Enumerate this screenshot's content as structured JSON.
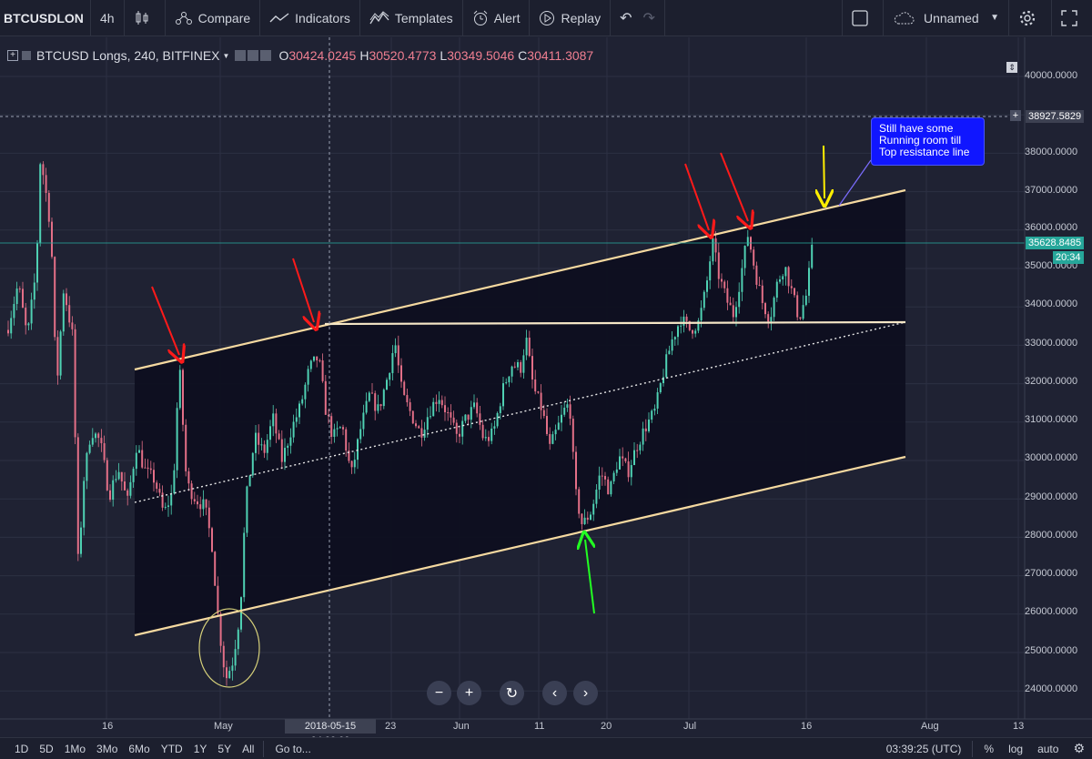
{
  "toolbar": {
    "symbol": "BTCUSDLON",
    "interval": "4h",
    "compare": "Compare",
    "indicators": "Indicators",
    "templates": "Templates",
    "alert": "Alert",
    "replay": "Replay",
    "layout_name": "Unnamed"
  },
  "legend": {
    "title": "BTCUSD Longs, 240, BITFINEX",
    "open": "30424.0245",
    "high": "30520.4773",
    "low": "30349.5046",
    "close": "30411.3087",
    "o": "O",
    "h": "H",
    "l": "L",
    "c": "C"
  },
  "note": {
    "line1": "Still have some",
    "line2": "Running room till",
    "line3": "Top resistance line"
  },
  "price_axis": {
    "labels": [
      "40000.0000",
      "38000.0000",
      "37000.0000",
      "36000.0000",
      "35000.0000",
      "34000.0000",
      "33000.0000",
      "32000.0000",
      "31000.0000",
      "30000.0000",
      "29000.0000",
      "28000.0000",
      "27000.0000",
      "26000.0000",
      "25000.0000",
      "24000.0000"
    ],
    "crosshair_price": "38927.5829",
    "last_price": "35628.8485",
    "countdown": "20:34"
  },
  "time_axis": {
    "labels": [
      "16",
      "May",
      "23",
      "Jun",
      "11",
      "20",
      "Jul",
      "16",
      "Aug",
      "13"
    ],
    "crosshair_time": "2018-05-15 04:00:00"
  },
  "bottom": {
    "ranges": [
      "1D",
      "5D",
      "1Mo",
      "3Mo",
      "6Mo",
      "YTD",
      "1Y",
      "5Y",
      "All"
    ],
    "goto": "Go to...",
    "clock": "03:39:25 (UTC)",
    "pct": "%",
    "log": "log",
    "auto": "auto"
  },
  "colors": {
    "background": "#1f2233",
    "channel_fill": "#0d0e1e",
    "channel_line": "#f5d9a0",
    "up_candle": "#4fd1b3",
    "down_candle": "#e36f87",
    "red_arrow": "#ff1a1a",
    "yellow_arrow": "#ffee00",
    "green_arrow": "#22ff22",
    "note_bg": "#1016ff",
    "last_price_badge": "#26a69a"
  },
  "chart_data": {
    "type": "candlestick",
    "symbol": "BTCUSD Longs",
    "interval": "240",
    "exchange": "BITFINEX",
    "ylim": [
      23500,
      40800
    ],
    "close_path": [
      {
        "x": 8,
        "y": 33400
      },
      {
        "x": 20,
        "y": 34600
      },
      {
        "x": 30,
        "y": 33200
      },
      {
        "x": 40,
        "y": 35000
      },
      {
        "x": 44,
        "y": 37800
      },
      {
        "x": 48,
        "y": 37400
      },
      {
        "x": 56,
        "y": 36000
      },
      {
        "x": 62,
        "y": 31800
      },
      {
        "x": 70,
        "y": 34500
      },
      {
        "x": 80,
        "y": 33200
      },
      {
        "x": 86,
        "y": 27200
      },
      {
        "x": 92,
        "y": 29500
      },
      {
        "x": 100,
        "y": 30800
      },
      {
        "x": 110,
        "y": 30500
      },
      {
        "x": 120,
        "y": 29100
      },
      {
        "x": 130,
        "y": 29800
      },
      {
        "x": 140,
        "y": 28900
      },
      {
        "x": 150,
        "y": 30400
      },
      {
        "x": 160,
        "y": 29700
      },
      {
        "x": 170,
        "y": 29500
      },
      {
        "x": 180,
        "y": 28600
      },
      {
        "x": 190,
        "y": 29200
      },
      {
        "x": 197,
        "y": 32500
      },
      {
        "x": 205,
        "y": 29400
      },
      {
        "x": 215,
        "y": 29000
      },
      {
        "x": 225,
        "y": 28800
      },
      {
        "x": 233,
        "y": 27800
      },
      {
        "x": 240,
        "y": 25800
      },
      {
        "x": 248,
        "y": 24300
      },
      {
        "x": 256,
        "y": 24800
      },
      {
        "x": 264,
        "y": 26100
      },
      {
        "x": 270,
        "y": 28900
      },
      {
        "x": 280,
        "y": 30600
      },
      {
        "x": 290,
        "y": 30200
      },
      {
        "x": 300,
        "y": 31100
      },
      {
        "x": 310,
        "y": 30000
      },
      {
        "x": 320,
        "y": 30800
      },
      {
        "x": 330,
        "y": 31400
      },
      {
        "x": 340,
        "y": 32400
      },
      {
        "x": 350,
        "y": 32700
      },
      {
        "x": 358,
        "y": 31300
      },
      {
        "x": 366,
        "y": 30600
      },
      {
        "x": 376,
        "y": 30900
      },
      {
        "x": 386,
        "y": 29600
      },
      {
        "x": 396,
        "y": 30800
      },
      {
        "x": 406,
        "y": 31700
      },
      {
        "x": 416,
        "y": 31300
      },
      {
        "x": 426,
        "y": 32200
      },
      {
        "x": 434,
        "y": 33100
      },
      {
        "x": 442,
        "y": 31700
      },
      {
        "x": 452,
        "y": 31200
      },
      {
        "x": 462,
        "y": 30700
      },
      {
        "x": 472,
        "y": 31300
      },
      {
        "x": 482,
        "y": 31700
      },
      {
        "x": 492,
        "y": 31200
      },
      {
        "x": 502,
        "y": 30600
      },
      {
        "x": 512,
        "y": 31100
      },
      {
        "x": 522,
        "y": 31400
      },
      {
        "x": 532,
        "y": 30500
      },
      {
        "x": 542,
        "y": 30700
      },
      {
        "x": 552,
        "y": 31800
      },
      {
        "x": 562,
        "y": 32500
      },
      {
        "x": 572,
        "y": 32400
      },
      {
        "x": 578,
        "y": 33200
      },
      {
        "x": 586,
        "y": 31900
      },
      {
        "x": 596,
        "y": 31300
      },
      {
        "x": 604,
        "y": 30300
      },
      {
        "x": 612,
        "y": 30800
      },
      {
        "x": 620,
        "y": 31300
      },
      {
        "x": 626,
        "y": 31500
      },
      {
        "x": 632,
        "y": 29200
      },
      {
        "x": 640,
        "y": 28300
      },
      {
        "x": 650,
        "y": 28700
      },
      {
        "x": 660,
        "y": 29700
      },
      {
        "x": 670,
        "y": 29200
      },
      {
        "x": 680,
        "y": 30100
      },
      {
        "x": 690,
        "y": 29700
      },
      {
        "x": 700,
        "y": 30400
      },
      {
        "x": 710,
        "y": 30900
      },
      {
        "x": 720,
        "y": 31300
      },
      {
        "x": 728,
        "y": 32200
      },
      {
        "x": 738,
        "y": 33100
      },
      {
        "x": 748,
        "y": 33700
      },
      {
        "x": 758,
        "y": 33400
      },
      {
        "x": 768,
        "y": 33600
      },
      {
        "x": 776,
        "y": 34500
      },
      {
        "x": 783,
        "y": 35700
      },
      {
        "x": 790,
        "y": 34800
      },
      {
        "x": 798,
        "y": 34200
      },
      {
        "x": 806,
        "y": 33800
      },
      {
        "x": 814,
        "y": 34800
      },
      {
        "x": 822,
        "y": 35900
      },
      {
        "x": 830,
        "y": 34900
      },
      {
        "x": 838,
        "y": 34100
      },
      {
        "x": 846,
        "y": 33700
      },
      {
        "x": 854,
        "y": 34600
      },
      {
        "x": 862,
        "y": 35100
      },
      {
        "x": 870,
        "y": 34400
      },
      {
        "x": 878,
        "y": 33700
      },
      {
        "x": 886,
        "y": 34300
      },
      {
        "x": 893,
        "y": 35600
      }
    ],
    "annotations": {
      "channel": {
        "upper_start": 32300,
        "upper_end": 37000,
        "lower_start": 25400,
        "lower_end": 30100,
        "mid_start": 28800,
        "mid_end": 33500
      },
      "horizontal_resistance": 33500
    }
  }
}
